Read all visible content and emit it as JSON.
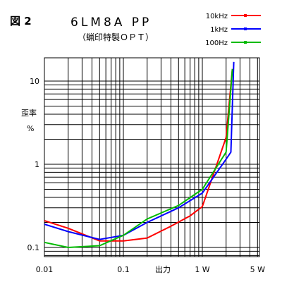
{
  "figure_label": "図 2",
  "chart_data": {
    "type": "line",
    "title": "6LM8A PP",
    "subtitle": "（蝋印特製ＯＰＴ）",
    "xlabel": "出力",
    "ylabel": "歪率\n%",
    "x_scale": "log",
    "y_scale": "log",
    "xlim": [
      0.01,
      5
    ],
    "ylim": [
      0.07,
      30
    ],
    "x_ticks": [
      {
        "value": 0.01,
        "label": "0.01"
      },
      {
        "value": 0.1,
        "label": "0.1"
      },
      {
        "value": 1,
        "label": "1 W"
      },
      {
        "value": 5,
        "label": "5 W"
      }
    ],
    "y_ticks": [
      {
        "value": 0.1,
        "label": "0.1"
      },
      {
        "value": 1,
        "label": "1"
      },
      {
        "value": 10,
        "label": "10"
      }
    ],
    "grid": true,
    "legend_position": "top-right",
    "series": [
      {
        "name": "10kHz",
        "color": "#ff0000",
        "x": [
          0.01,
          0.02,
          0.05,
          0.1,
          0.2,
          0.4,
          0.7,
          1.0,
          2.0,
          2.4
        ],
        "y": [
          0.21,
          0.17,
          0.12,
          0.12,
          0.13,
          0.18,
          0.24,
          0.31,
          2.1,
          14
        ]
      },
      {
        "name": "1kHz",
        "color": "#0000ff",
        "x": [
          0.01,
          0.02,
          0.05,
          0.1,
          0.2,
          0.5,
          1.0,
          2.0,
          2.3,
          2.5
        ],
        "y": [
          0.19,
          0.155,
          0.125,
          0.14,
          0.2,
          0.3,
          0.45,
          1.15,
          1.4,
          17
        ]
      },
      {
        "name": "100Hz",
        "color": "#00bb00",
        "x": [
          0.01,
          0.02,
          0.05,
          0.1,
          0.2,
          0.5,
          1.0,
          2.0,
          2.4
        ],
        "y": [
          0.115,
          0.1,
          0.105,
          0.14,
          0.22,
          0.32,
          0.5,
          1.4,
          14
        ]
      }
    ]
  }
}
